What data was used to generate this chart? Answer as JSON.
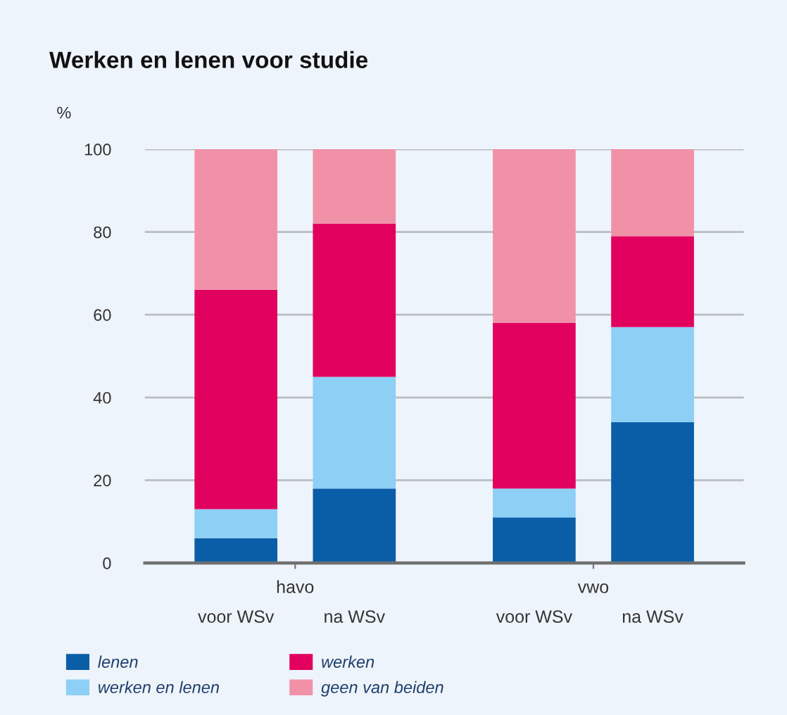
{
  "chart_data": {
    "type": "bar",
    "title": "Werken en lenen voor studie",
    "ylabel": "%",
    "categories": [
      "voor WSv",
      "na WSv",
      "voor WSv",
      "na WSv"
    ],
    "annotations": [
      "havo",
      "vwo"
    ],
    "stacked": true,
    "series": [
      {
        "name": "lenen",
        "color": "#0a5ea8",
        "values": [
          6,
          18,
          11,
          34
        ]
      },
      {
        "name": "werken en lenen",
        "color": "#8dcff5",
        "values": [
          7,
          27,
          7,
          23
        ]
      },
      {
        "name": "werken",
        "color": "#e2005f",
        "values": [
          53,
          37,
          40,
          22
        ]
      },
      {
        "name": "geen van beiden",
        "color": "#f191a8",
        "values": [
          34,
          18,
          42,
          21
        ]
      }
    ],
    "ylim": [
      0,
      100
    ],
    "yticks": [
      0,
      20,
      40,
      60,
      80,
      100
    ],
    "grid": "y",
    "legend": "bottom"
  }
}
